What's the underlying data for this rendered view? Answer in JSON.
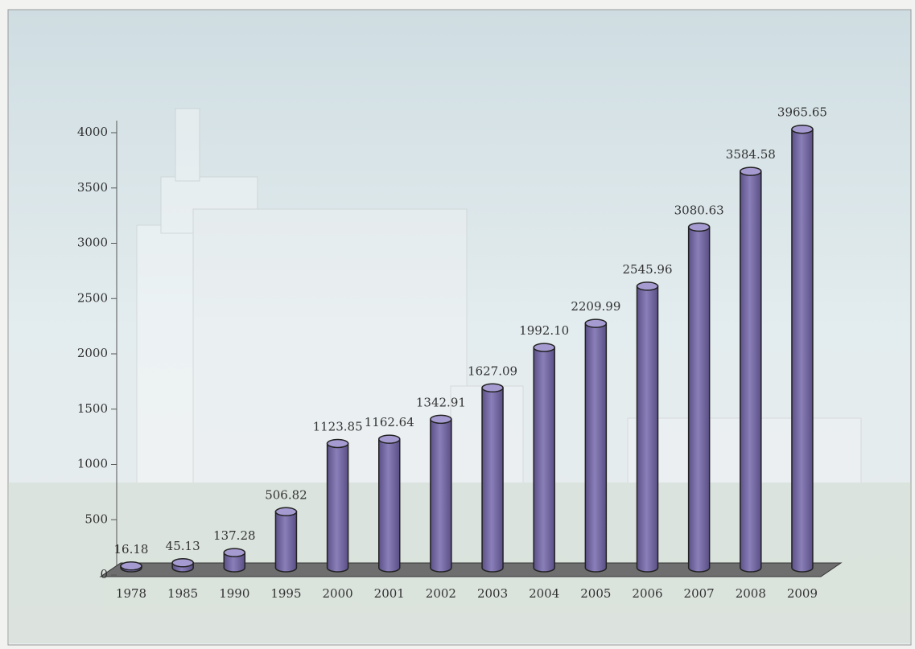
{
  "chart_data": {
    "type": "bar",
    "categories": [
      "1978",
      "1985",
      "1990",
      "1995",
      "2000",
      "2001",
      "2002",
      "2003",
      "2004",
      "2005",
      "2006",
      "2007",
      "2008",
      "2009"
    ],
    "values": [
      16.18,
      45.13,
      137.28,
      506.82,
      1123.85,
      1162.64,
      1342.91,
      1627.09,
      1992.1,
      2209.99,
      2545.96,
      3080.63,
      3584.58,
      3965.65
    ],
    "value_labels": [
      "16.18",
      "45.13",
      "137.28",
      "506.82",
      "1123.85",
      "1162.64",
      "1342.91",
      "1627.09",
      "1992.10",
      "2209.99",
      "2545.96",
      "3080.63",
      "3584.58",
      "3965.65"
    ],
    "color": "#7a6da6",
    "ylim": [
      0,
      4000
    ],
    "yticks": [
      0,
      500,
      1000,
      1500,
      2000,
      2500,
      3000,
      3500,
      4000
    ]
  }
}
